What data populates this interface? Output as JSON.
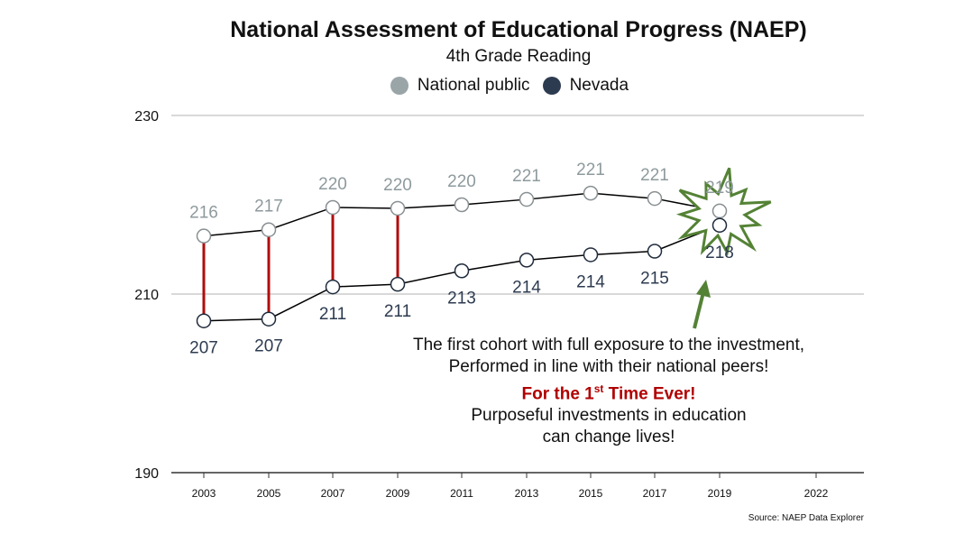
{
  "chart_data": {
    "type": "line",
    "title": "National Assessment of Educational Progress (NAEP)",
    "subtitle": "4th Grade Reading",
    "x": [
      "2003",
      "2005",
      "2007",
      "2009",
      "2011",
      "2013",
      "2015",
      "2017",
      "2019",
      "2022"
    ],
    "ylim": [
      190,
      230
    ],
    "yticks": [
      190,
      210,
      230
    ],
    "grid": true,
    "legend_position": "top-center",
    "series": [
      {
        "name": "National public",
        "color": "#9aa5a8",
        "values": [
          216.5,
          217.2,
          219.7,
          219.6,
          220.0,
          220.6,
          221.3,
          220.7,
          219.3,
          null
        ],
        "labels": [
          "216",
          "217",
          "220",
          "220",
          "220",
          "221",
          "221",
          "221",
          "219",
          ""
        ]
      },
      {
        "name": "Nevada",
        "color": "#2d3b50",
        "values": [
          207.0,
          207.2,
          210.8,
          211.1,
          212.6,
          213.8,
          214.4,
          214.8,
          217.7,
          null
        ],
        "labels": [
          "207",
          "207",
          "211",
          "211",
          "213",
          "214",
          "214",
          "215",
          "218",
          ""
        ]
      }
    ],
    "annotation": {
      "line1": "The first cohort with full exposure to the investment,",
      "line2": "Performed in line with their national peers!",
      "highlight_pre": "For the 1",
      "highlight_sup": "st",
      "highlight_post": " Time Ever!",
      "line4": "Purposeful investments in education",
      "line5": "can change lives!"
    },
    "source": "Source: NAEP Data Explorer",
    "colors": {
      "gap_line": "#b00d0d",
      "arrow": "#548235",
      "burst": "#548235",
      "connector": "#000000"
    }
  }
}
